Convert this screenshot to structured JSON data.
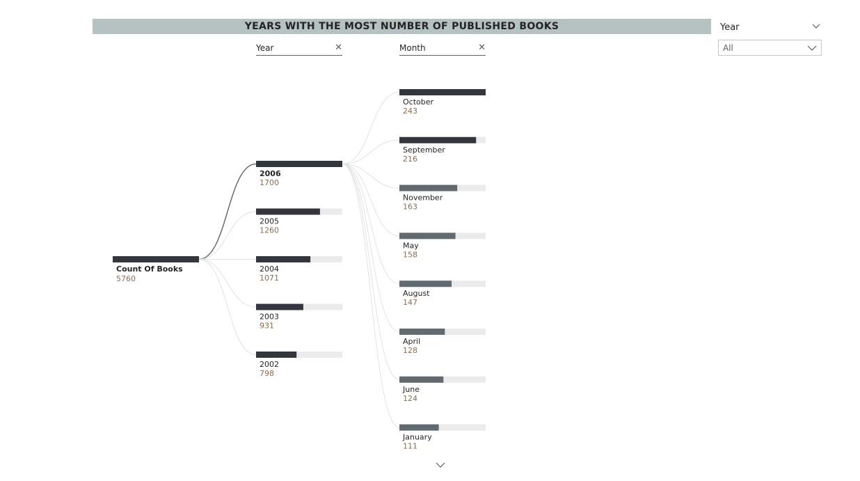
{
  "title": "YEARS WITH THE MOST NUMBER OF PUBLISHED BOOKS",
  "levels": [
    {
      "label": "Year",
      "close_icon": "close-icon"
    },
    {
      "label": "Month",
      "close_icon": "close-icon"
    }
  ],
  "slicer": {
    "title": "Year",
    "selected": "All",
    "icon": "chevron-down-icon"
  },
  "colors": {
    "header_bg": "#b6c1c1",
    "bar_dark": "#33373d",
    "bar_mid": "#616a70",
    "bar_track": "#ebebeb",
    "value_text": "#8a6d50",
    "link": "#6b6b6b",
    "link_light": "#e2e2e2"
  },
  "chart_data": {
    "type": "decomposition-tree",
    "title": "YEARS WITH THE MOST NUMBER OF PUBLISHED BOOKS",
    "root": {
      "label": "Count Of Books",
      "value": 5760
    },
    "year_level": {
      "label": "Year",
      "selected": "2006",
      "categories": [
        "2006",
        "2005",
        "2004",
        "2003",
        "2002"
      ],
      "values": [
        1700,
        1260,
        1071,
        931,
        798
      ]
    },
    "month_level": {
      "label": "Month",
      "categories": [
        "October",
        "September",
        "November",
        "May",
        "August",
        "April",
        "June",
        "January"
      ],
      "values": [
        243,
        216,
        163,
        158,
        147,
        128,
        124,
        111
      ]
    }
  }
}
